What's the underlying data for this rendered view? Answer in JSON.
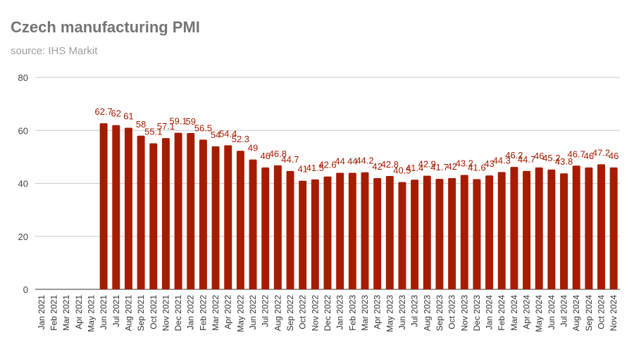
{
  "chart_data": {
    "type": "bar",
    "title": "Czech manufacturing PMI",
    "subtitle": "source: IHS Markit",
    "xlabel": "",
    "ylabel": "",
    "ylim": [
      0,
      80
    ],
    "yticks": [
      0,
      20,
      40,
      60,
      80
    ],
    "grid": true,
    "legend": "none",
    "bar_color": "#a61c00",
    "label_color": "#a61c00",
    "categories": [
      "Jan 2021",
      "Feb 2021",
      "Mar 2021",
      "Apr 2021",
      "May 2021",
      "Jun 2021",
      "Jul 2021",
      "Aug 2021",
      "Sep 2021",
      "Oct 2021",
      "Nov 2021",
      "Dec 2021",
      "Jan 2022",
      "Feb 2022",
      "Mar 2022",
      "Apr 2022",
      "May 2022",
      "Jun 2022",
      "Jul 2022",
      "Aug 2022",
      "Sep 2022",
      "Oct 2022",
      "Nov 2022",
      "Dec 2022",
      "Jan 2023",
      "Feb 2023",
      "Mar 2023",
      "Apr 2023",
      "May 2023",
      "Jun 2023",
      "Jul 2023",
      "Aug 2023",
      "Sep 2023",
      "Oct 2023",
      "Nov 2023",
      "Dec 2023",
      "Jan 2024",
      "Feb 2024",
      "Mar 2024",
      "Apr 2024",
      "May 2024",
      "Jun 2024",
      "Jul 2024",
      "Aug 2024",
      "Sep 2024",
      "Oct 2024",
      "Nov 2024"
    ],
    "values": [
      null,
      null,
      null,
      null,
      null,
      62.7,
      62,
      61,
      58,
      55.1,
      57.1,
      59.1,
      59,
      56.5,
      54,
      54.4,
      52.3,
      49,
      46,
      46.8,
      44.7,
      41,
      41.5,
      42.6,
      44,
      44,
      44.2,
      42,
      42.8,
      40.5,
      41.4,
      42.9,
      41.7,
      42,
      43.2,
      41.6,
      43,
      44.3,
      46.2,
      44.7,
      46,
      45.2,
      43.8,
      46.7,
      46,
      47.2,
      46
    ]
  }
}
